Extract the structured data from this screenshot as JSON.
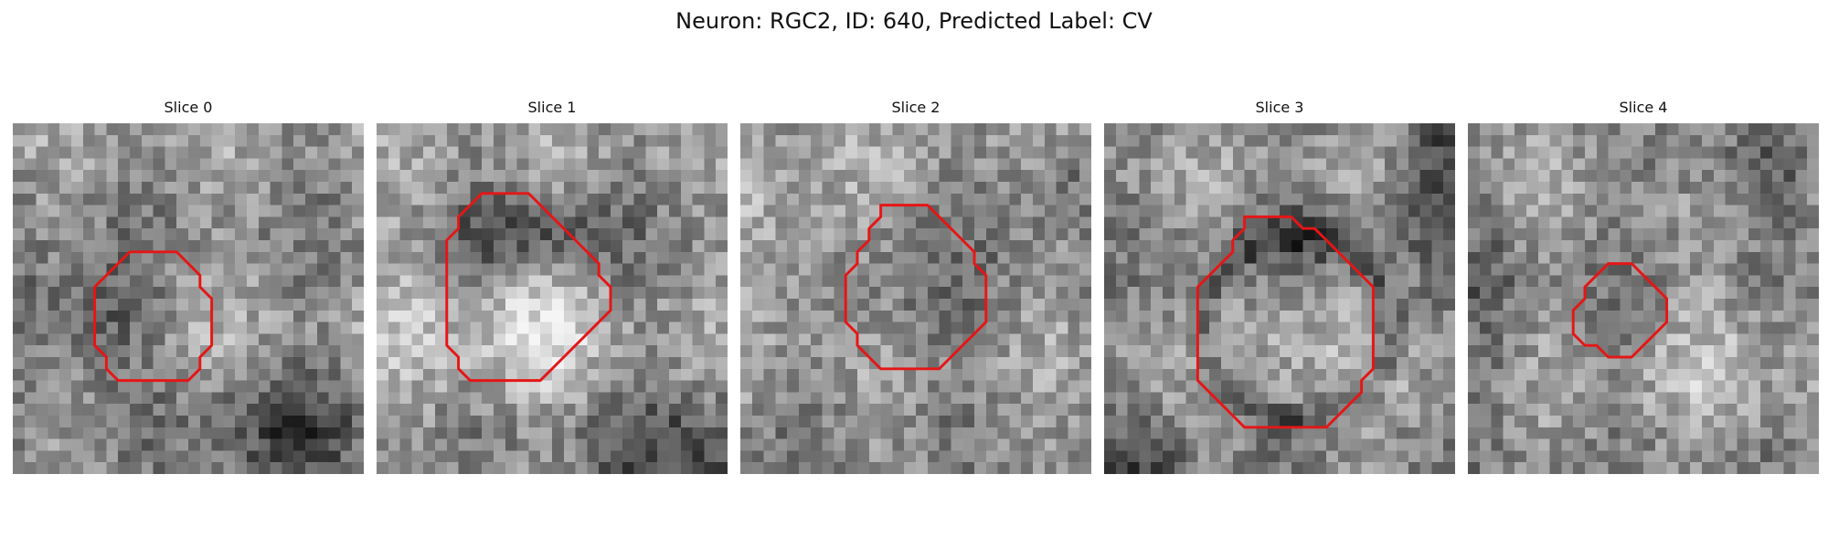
{
  "figure": {
    "title": "Neuron: RGC2, ID: 640, Predicted Label: CV"
  },
  "style": {
    "outline_color": "#e51616",
    "image_colormap": "grayscale"
  },
  "panels": [
    {
      "title": "Slice 0",
      "seed": 11,
      "image_description": "noisy grayscale microscopy patch with darker textured cell body",
      "outline": [
        [
          12,
          11
        ],
        [
          13,
          11
        ],
        [
          14,
          11
        ],
        [
          15,
          12
        ],
        [
          16,
          13
        ],
        [
          16,
          14
        ],
        [
          17,
          15
        ],
        [
          17,
          16
        ],
        [
          17,
          17
        ],
        [
          17,
          18
        ],
        [
          17,
          19
        ],
        [
          16,
          20
        ],
        [
          16,
          21
        ],
        [
          15,
          22
        ],
        [
          14,
          22
        ],
        [
          13,
          22
        ],
        [
          12,
          22
        ],
        [
          11,
          22
        ],
        [
          10,
          22
        ],
        [
          9,
          22
        ],
        [
          8,
          21
        ],
        [
          8,
          20
        ],
        [
          7,
          19
        ],
        [
          7,
          18
        ],
        [
          7,
          17
        ],
        [
          7,
          16
        ],
        [
          7,
          15
        ],
        [
          7,
          14
        ],
        [
          8,
          13
        ],
        [
          9,
          12
        ],
        [
          10,
          11
        ],
        [
          11,
          11
        ]
      ]
    },
    {
      "title": "Slice 1",
      "seed": 23,
      "image_description": "grayscale microscopy patch with circular bright nucleus region",
      "outline": [
        [
          10,
          6
        ],
        [
          11,
          6
        ],
        [
          12,
          6
        ],
        [
          13,
          6
        ],
        [
          14,
          7
        ],
        [
          15,
          8
        ],
        [
          16,
          9
        ],
        [
          17,
          10
        ],
        [
          18,
          11
        ],
        [
          19,
          12
        ],
        [
          19,
          13
        ],
        [
          20,
          14
        ],
        [
          20,
          15
        ],
        [
          20,
          16
        ],
        [
          19,
          17
        ],
        [
          18,
          18
        ],
        [
          17,
          19
        ],
        [
          16,
          20
        ],
        [
          15,
          21
        ],
        [
          14,
          22
        ],
        [
          13,
          22
        ],
        [
          12,
          22
        ],
        [
          11,
          22
        ],
        [
          10,
          22
        ],
        [
          9,
          22
        ],
        [
          8,
          22
        ],
        [
          7,
          21
        ],
        [
          7,
          20
        ],
        [
          6,
          19
        ],
        [
          6,
          18
        ],
        [
          6,
          17
        ],
        [
          6,
          16
        ],
        [
          6,
          15
        ],
        [
          6,
          14
        ],
        [
          6,
          13
        ],
        [
          6,
          12
        ],
        [
          6,
          11
        ],
        [
          6,
          10
        ],
        [
          7,
          9
        ],
        [
          7,
          8
        ],
        [
          8,
          7
        ],
        [
          9,
          6
        ]
      ]
    },
    {
      "title": "Slice 2",
      "seed": 37,
      "image_description": "grainy grayscale microscopy patch with medium circular cell",
      "outline": [
        [
          12,
          7
        ],
        [
          13,
          7
        ],
        [
          14,
          7
        ],
        [
          15,
          7
        ],
        [
          16,
          7
        ],
        [
          17,
          8
        ],
        [
          18,
          9
        ],
        [
          19,
          10
        ],
        [
          20,
          11
        ],
        [
          20,
          12
        ],
        [
          21,
          13
        ],
        [
          21,
          14
        ],
        [
          21,
          15
        ],
        [
          21,
          16
        ],
        [
          21,
          17
        ],
        [
          20,
          18
        ],
        [
          19,
          19
        ],
        [
          18,
          20
        ],
        [
          17,
          21
        ],
        [
          16,
          21
        ],
        [
          15,
          21
        ],
        [
          14,
          21
        ],
        [
          13,
          21
        ],
        [
          12,
          21
        ],
        [
          11,
          20
        ],
        [
          10,
          19
        ],
        [
          10,
          18
        ],
        [
          9,
          17
        ],
        [
          9,
          16
        ],
        [
          9,
          15
        ],
        [
          9,
          14
        ],
        [
          9,
          13
        ],
        [
          10,
          12
        ],
        [
          10,
          11
        ],
        [
          11,
          10
        ],
        [
          11,
          9
        ],
        [
          12,
          8
        ]
      ]
    },
    {
      "title": "Slice 3",
      "seed": 49,
      "image_description": "grayscale microscopy patch with large round darker ring and lighter interior",
      "outline": [
        [
          12,
          8
        ],
        [
          13,
          8
        ],
        [
          14,
          8
        ],
        [
          15,
          8
        ],
        [
          16,
          8
        ],
        [
          17,
          9
        ],
        [
          18,
          9
        ],
        [
          19,
          10
        ],
        [
          20,
          11
        ],
        [
          21,
          12
        ],
        [
          22,
          13
        ],
        [
          23,
          14
        ],
        [
          23,
          15
        ],
        [
          23,
          16
        ],
        [
          23,
          17
        ],
        [
          23,
          18
        ],
        [
          23,
          19
        ],
        [
          23,
          20
        ],
        [
          23,
          21
        ],
        [
          22,
          22
        ],
        [
          22,
          23
        ],
        [
          21,
          24
        ],
        [
          20,
          25
        ],
        [
          19,
          26
        ],
        [
          18,
          26
        ],
        [
          17,
          26
        ],
        [
          16,
          26
        ],
        [
          15,
          26
        ],
        [
          14,
          26
        ],
        [
          13,
          26
        ],
        [
          12,
          26
        ],
        [
          11,
          25
        ],
        [
          10,
          24
        ],
        [
          9,
          23
        ],
        [
          8,
          22
        ],
        [
          8,
          21
        ],
        [
          8,
          20
        ],
        [
          8,
          19
        ],
        [
          8,
          18
        ],
        [
          8,
          17
        ],
        [
          8,
          16
        ],
        [
          8,
          15
        ],
        [
          8,
          14
        ],
        [
          9,
          13
        ],
        [
          10,
          12
        ],
        [
          11,
          11
        ],
        [
          11,
          10
        ],
        [
          12,
          9
        ]
      ]
    },
    {
      "title": "Slice 4",
      "seed": 61,
      "image_description": "noisy grayscale microscopy patch with small outlined cell",
      "outline": [
        [
          12,
          12
        ],
        [
          13,
          12
        ],
        [
          14,
          12
        ],
        [
          15,
          13
        ],
        [
          16,
          14
        ],
        [
          17,
          15
        ],
        [
          17,
          16
        ],
        [
          17,
          17
        ],
        [
          16,
          18
        ],
        [
          15,
          19
        ],
        [
          14,
          20
        ],
        [
          13,
          20
        ],
        [
          12,
          20
        ],
        [
          11,
          19
        ],
        [
          10,
          19
        ],
        [
          9,
          18
        ],
        [
          9,
          17
        ],
        [
          9,
          16
        ],
        [
          10,
          15
        ],
        [
          10,
          14
        ],
        [
          11,
          13
        ]
      ]
    }
  ]
}
